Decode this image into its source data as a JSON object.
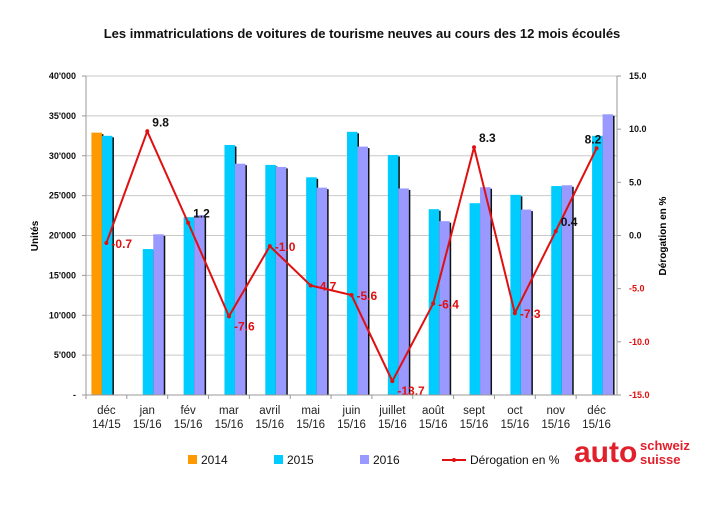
{
  "chart_data": {
    "type": "bar",
    "title": "Les immatriculations de voitures de tourisme neuves au cours des 12 mois écoulés",
    "ylabel": "Unités",
    "ylabel_right": "Dérogation en %",
    "ylim": [
      0,
      40000
    ],
    "ylim_right": [
      -15,
      15
    ],
    "yticks": [
      "-",
      "5'000",
      "10'000",
      "15'000",
      "20'000",
      "25'000",
      "30'000",
      "35'000",
      "40'000"
    ],
    "yticks_right": [
      "-15.0",
      "-10.0",
      "-5.0",
      "0.0",
      "5.0",
      "10.0",
      "15.0"
    ],
    "grid": true,
    "legend_position": "bottom",
    "categories": [
      [
        "déc",
        "14/15"
      ],
      [
        "jan",
        "15/16"
      ],
      [
        "fév",
        "15/16"
      ],
      [
        "mar",
        "15/16"
      ],
      [
        "avril",
        "15/16"
      ],
      [
        "mai",
        "15/16"
      ],
      [
        "juin",
        "15/16"
      ],
      [
        "juillet",
        "15/16"
      ],
      [
        "août",
        "15/16"
      ],
      [
        "sept",
        "15/16"
      ],
      [
        "oct",
        "15/16"
      ],
      [
        "nov",
        "15/16"
      ],
      [
        "déc",
        "15/16"
      ]
    ],
    "series": [
      {
        "name": "2014",
        "color": "#FF9900",
        "values": [
          32900,
          null,
          null,
          null,
          null,
          null,
          null,
          null,
          null,
          null,
          null,
          null,
          null
        ]
      },
      {
        "name": "2015",
        "color": "#00CCFF",
        "values": [
          32500,
          18300,
          22300,
          31350,
          28850,
          27300,
          33000,
          30100,
          23300,
          24050,
          25100,
          26200,
          32500
        ]
      },
      {
        "name": "2016",
        "color": "#9999FF",
        "values": [
          null,
          20150,
          22550,
          29000,
          28600,
          26000,
          31150,
          25900,
          21800,
          26050,
          23250,
          26300,
          35200
        ]
      }
    ],
    "line_series": {
      "name": "Dérogation en %",
      "color": "#E01010",
      "axis": "right",
      "values": [
        -0.7,
        9.8,
        1.2,
        -7.6,
        -1.0,
        -4.7,
        -5.6,
        -13.7,
        -6.4,
        8.3,
        -7.3,
        0.4,
        8.2
      ],
      "labels": [
        "-0.7",
        "9.8",
        "1.2",
        "-7.6",
        "-1.0",
        "-4.7",
        "-5.6",
        "-13.7",
        "-6.4",
        "8.3",
        "-7.3",
        "0.4",
        "8.2"
      ]
    }
  },
  "logo": {
    "main": "auto",
    "line1": "schweiz",
    "line2": "suisse",
    "color": "#E2202C"
  }
}
